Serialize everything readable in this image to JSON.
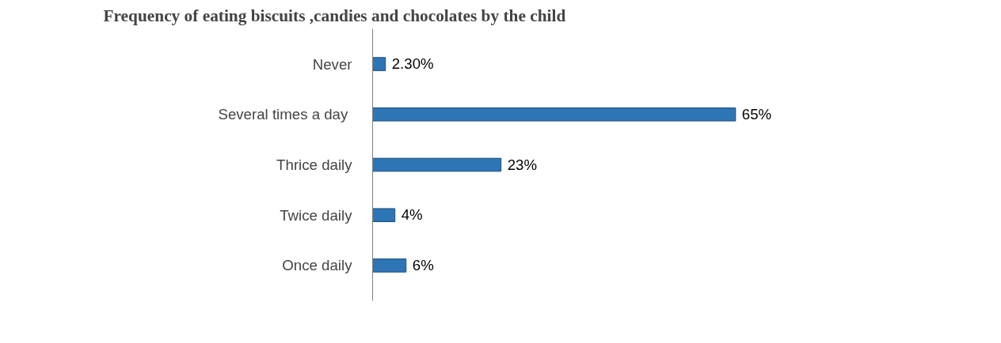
{
  "chart_data": {
    "type": "bar",
    "orientation": "horizontal",
    "title": "Frequency of eating biscuits ,candies and chocolates by the child",
    "categories": [
      "Never",
      "Several times  a day",
      "Thrice daily",
      "Twice daily",
      "Once daily"
    ],
    "values": [
      2.3,
      65,
      23,
      4,
      6
    ],
    "value_labels": [
      "2.30%",
      "65%",
      "23%",
      "4%",
      "6%"
    ],
    "color": "#2e75b6"
  }
}
